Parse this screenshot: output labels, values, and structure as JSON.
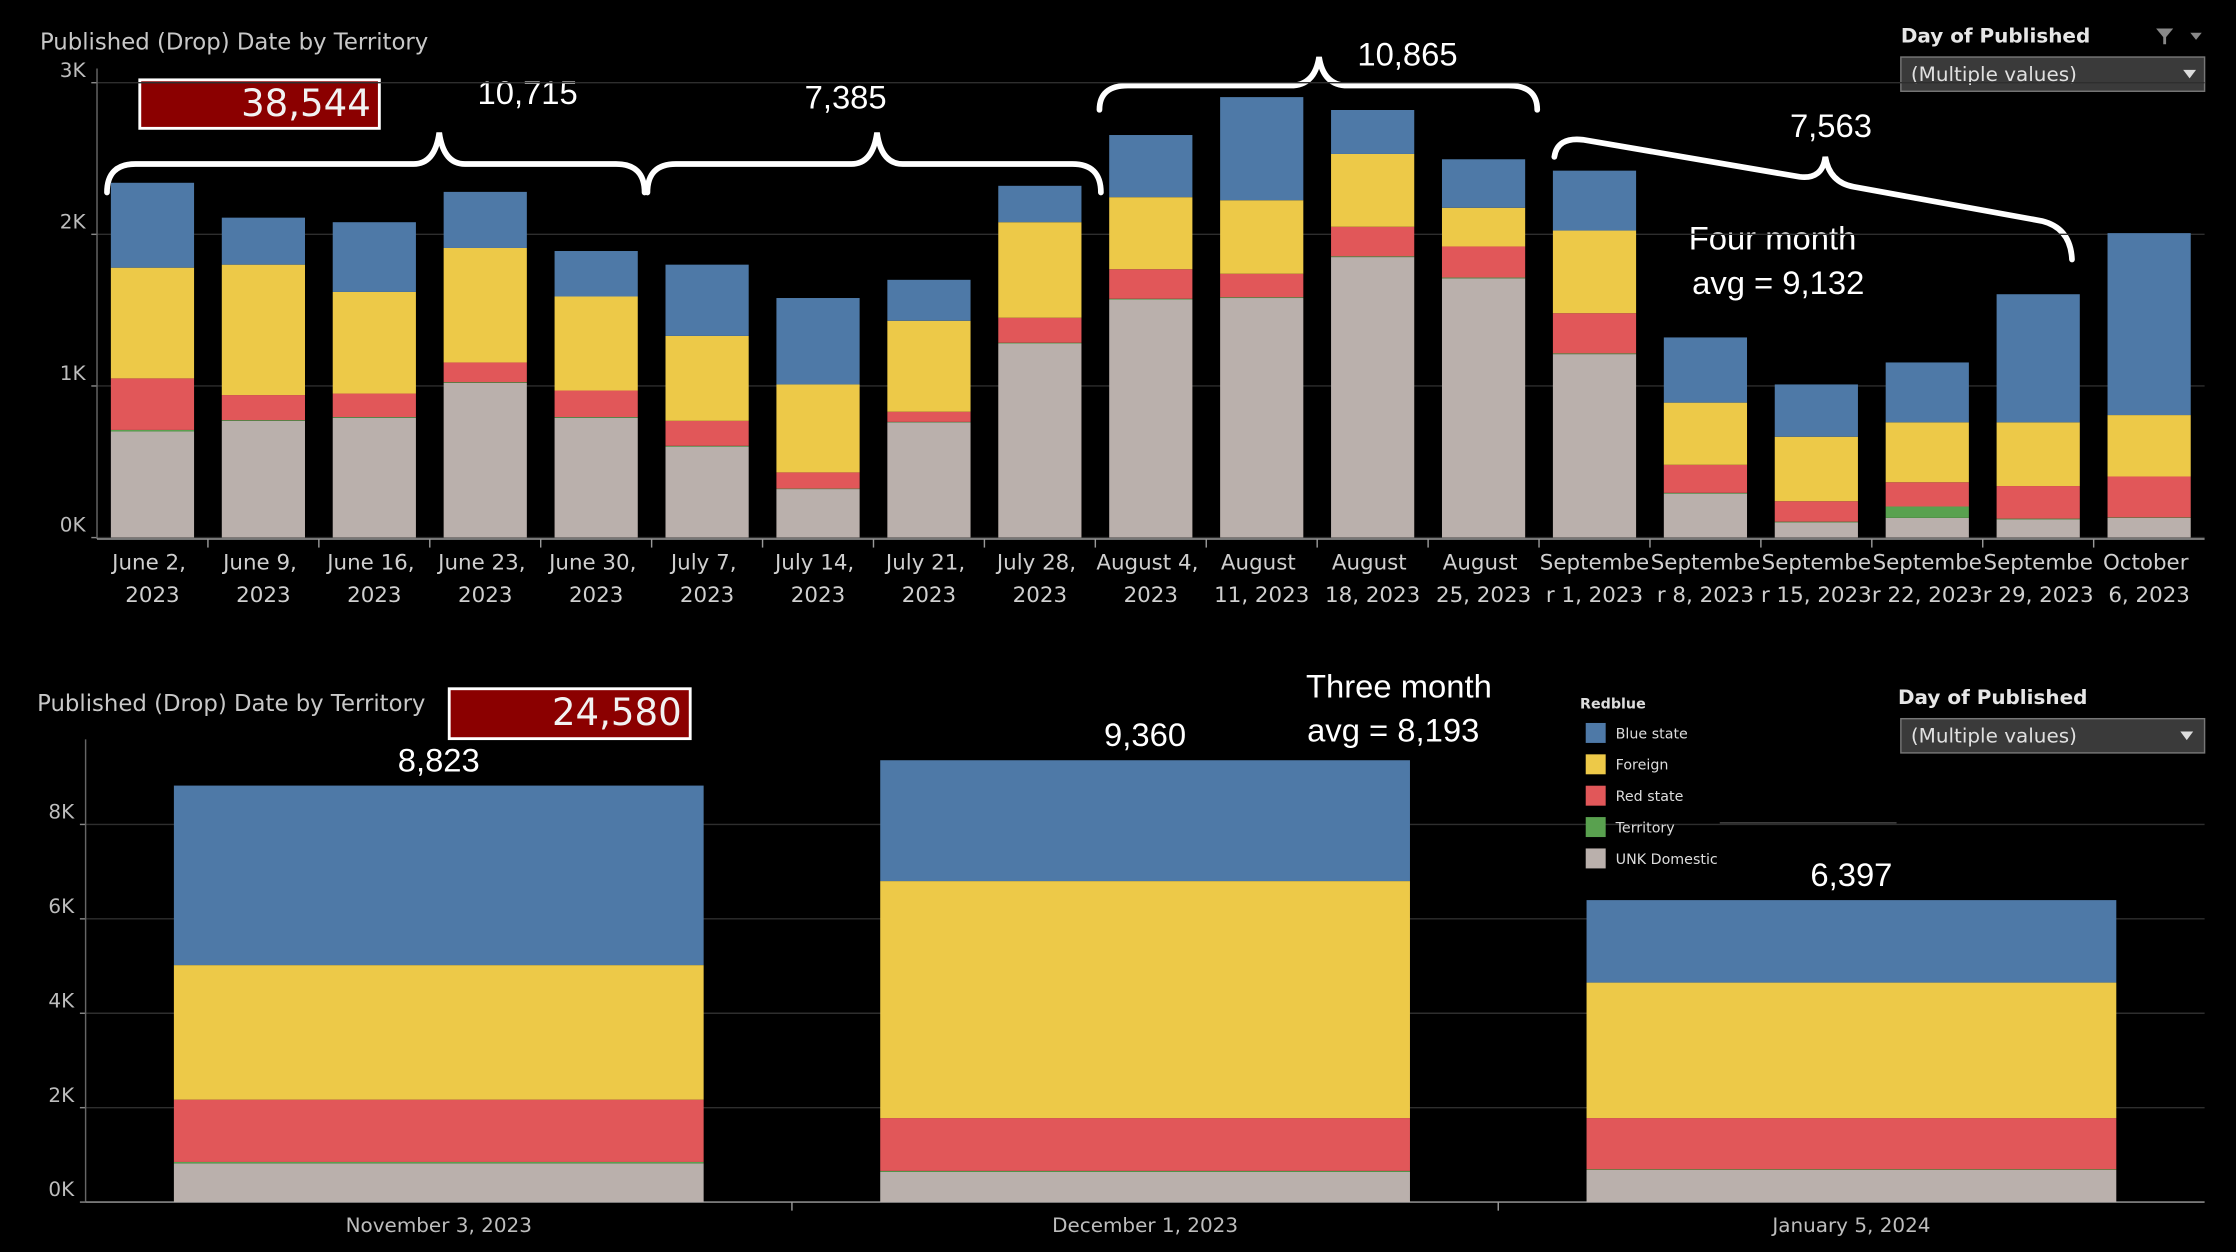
{
  "chart_data": [
    {
      "type": "stacked_bar",
      "title": "Published (Drop) Date by Territory",
      "total_box": "38,544",
      "annotations": [
        "10,715",
        "7,385",
        "10,865",
        "7,563"
      ],
      "note": [
        "Four month",
        "avg = 9,132"
      ],
      "filter": {
        "label": "Day of Published",
        "value": "(Multiple values)"
      },
      "categories": [
        "June 2, 2023",
        "June 9, 2023",
        "June 16, 2023",
        "June 23, 2023",
        "June 30, 2023",
        "July 7, 2023",
        "July 14, 2023",
        "July 21, 2023",
        "July 28, 2023",
        "August 4, 2023",
        "August 11, 2023",
        "August 18, 2023",
        "August 25, 2023",
        "September 1, 2023",
        "September 8, 2023",
        "September 15, 2023",
        "September 22, 2023",
        "September 29, 2023",
        "October 6, 2023"
      ],
      "series": [
        {
          "color": "#bab0ac",
          "values": [
            700,
            770,
            790,
            1020,
            790,
            600,
            320,
            760,
            1280,
            1570,
            1580,
            1850,
            1710,
            1210,
            290,
            100,
            130,
            120,
            130
          ]
        },
        {
          "color": "#59a14f",
          "values": [
            10,
            5,
            5,
            5,
            5,
            5,
            3,
            3,
            5,
            5,
            5,
            5,
            5,
            5,
            5,
            5,
            75,
            5,
            3
          ]
        },
        {
          "color": "#e15759",
          "values": [
            340,
            165,
            155,
            130,
            175,
            165,
            107,
            67,
            165,
            195,
            155,
            195,
            205,
            265,
            185,
            135,
            160,
            215,
            270
          ]
        },
        {
          "color": "#edc948",
          "values": [
            730,
            860,
            670,
            755,
            620,
            560,
            580,
            600,
            630,
            475,
            485,
            480,
            255,
            545,
            410,
            425,
            395,
            420,
            405
          ]
        },
        {
          "color": "#4e79a7",
          "values": [
            560,
            310,
            460,
            370,
            300,
            470,
            570,
            270,
            240,
            410,
            680,
            290,
            320,
            395,
            430,
            345,
            395,
            845,
            1200
          ]
        }
      ],
      "ylim": [
        0,
        3000
      ],
      "yticks": [
        {
          "value": 0,
          "label": "0K"
        },
        {
          "value": 1000,
          "label": "1K"
        },
        {
          "value": 2000,
          "label": "2K"
        },
        {
          "value": 3000,
          "label": "3K"
        }
      ],
      "grid": true
    },
    {
      "type": "stacked_bar",
      "title": "Published (Drop) Date by Territory",
      "total_box": "24,580",
      "note": [
        "Three month",
        "avg = 8,193"
      ],
      "filter": {
        "label": "Day of Published",
        "value": "(Multiple values)"
      },
      "legend_title": "Redblue",
      "categories": [
        "November 3, 2023",
        "December 1, 2023",
        "January 5, 2024"
      ],
      "total_labels": [
        "8,823",
        "9,360",
        "6,397"
      ],
      "series": [
        {
          "name": "UNK Domestic",
          "color": "#bab0ac",
          "values": [
            820,
            640,
            680
          ]
        },
        {
          "name": "Territory",
          "color": "#59a14f",
          "values": [
            30,
            20,
            15
          ]
        },
        {
          "name": "Red state",
          "color": "#e15759",
          "values": [
            1320,
            1120,
            1085
          ]
        },
        {
          "name": "Foreign",
          "color": "#edc948",
          "values": [
            2850,
            5020,
            2870
          ]
        },
        {
          "name": "Blue state",
          "color": "#4e79a7",
          "values": [
            3803,
            2560,
            1747
          ]
        }
      ],
      "ylim": [
        0,
        9500
      ],
      "yticks": [
        {
          "value": 0,
          "label": "0K"
        },
        {
          "value": 2000,
          "label": "2K"
        },
        {
          "value": 4000,
          "label": "4K"
        },
        {
          "value": 6000,
          "label": "6K"
        },
        {
          "value": 8000,
          "label": "8K"
        }
      ],
      "grid": true
    }
  ]
}
